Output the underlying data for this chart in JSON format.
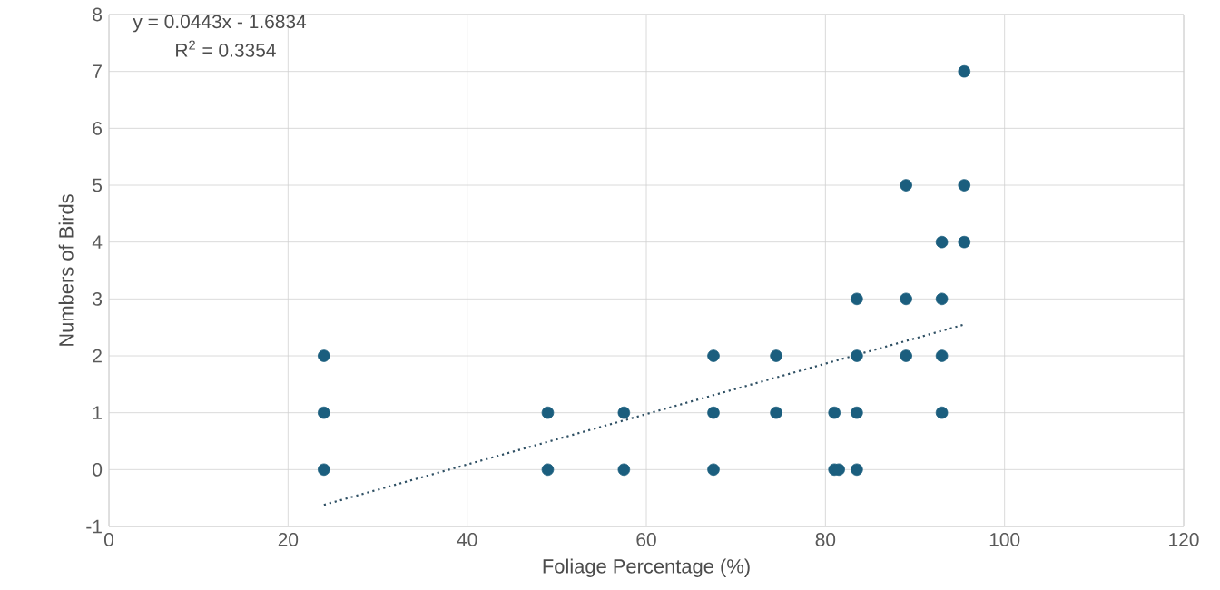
{
  "chart_data": {
    "type": "scatter",
    "xlabel": "Foliage Percentage (%)",
    "ylabel": "Numbers of Birds",
    "xlim": [
      0,
      120
    ],
    "xticks": [
      0,
      20,
      40,
      60,
      80,
      100,
      120
    ],
    "ylim": [
      -1,
      8
    ],
    "yticks": [
      -1,
      0,
      1,
      2,
      3,
      4,
      5,
      6,
      7,
      8
    ],
    "grid": true,
    "series": [
      {
        "marker": "circle",
        "color": "#1b5e7e",
        "x": [
          24,
          24,
          24,
          49,
          49,
          57.5,
          57.5,
          67.5,
          67.5,
          67.5,
          74.5,
          74.5,
          81,
          81.5,
          81,
          83.5,
          83.5,
          83.5,
          83.5,
          89,
          89,
          89,
          93,
          93,
          93,
          93,
          95.5,
          95.5,
          95.5
        ],
        "values": [
          0,
          1,
          2,
          0,
          1,
          0,
          1,
          0,
          1,
          2,
          1,
          2,
          0,
          0,
          1,
          0,
          1,
          2,
          3,
          2,
          3,
          5,
          1,
          2,
          3,
          4,
          4,
          5,
          7
        ]
      },
      {
        "type": "line",
        "color": "#2e4f63",
        "line_style": "dotted",
        "x": [
          24,
          95.5
        ],
        "values": [
          -0.62,
          2.55
        ]
      }
    ],
    "annotations": [
      "y = 0.0443x - 1.6834",
      "R$^{2}$ = 0.3354"
    ]
  }
}
